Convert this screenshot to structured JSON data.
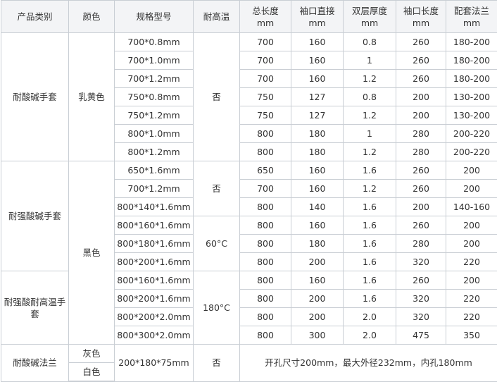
{
  "headers": [
    {
      "top": "产品类别"
    },
    {
      "top": "颜色"
    },
    {
      "top": "规格型号"
    },
    {
      "top": "耐高温"
    },
    {
      "top": "总长度",
      "unit": "mm"
    },
    {
      "top": "袖口直接",
      "unit": "mm"
    },
    {
      "top": "双层厚度",
      "unit": "mm"
    },
    {
      "top": "袖口长度",
      "unit": "mm"
    },
    {
      "top": "配套法兰",
      "unit": "mm"
    }
  ],
  "groups": {
    "g1": {
      "category": "耐酸碱手套",
      "color": "乳黄色",
      "heat": "否"
    },
    "g2": {
      "category": "耐强酸碱手套",
      "color": "黑色",
      "heat_a": "否",
      "heat_b": "60°C"
    },
    "g3": {
      "category": "耐强酸耐高温手套",
      "heat": "180°C"
    },
    "g4": {
      "category": "耐酸碱法兰",
      "color_a": "灰色",
      "color_b": "白色",
      "spec": "200*180*75mm",
      "heat": "否",
      "note": "开孔尺寸200mm，最大外径232mm，内孔180mm"
    }
  },
  "rows": [
    [
      "700*0.8mm",
      "700",
      "160",
      "0.8",
      "260",
      "180-200"
    ],
    [
      "700*1.0mm",
      "700",
      "160",
      "1",
      "260",
      "180-200"
    ],
    [
      "700*1.2mm",
      "700",
      "160",
      "1.2",
      "260",
      "180-200"
    ],
    [
      "750*0.8mm",
      "750",
      "127",
      "0.8",
      "200",
      "130-200"
    ],
    [
      "750*1.2mm",
      "750",
      "127",
      "1.2",
      "200",
      "130-200"
    ],
    [
      "800*1.0mm",
      "800",
      "180",
      "1",
      "280",
      "200-220"
    ],
    [
      "800*1.2mm",
      "800",
      "180",
      "1.2",
      "280",
      "200-220"
    ],
    [
      "650*1.6mm",
      "650",
      "160",
      "1.6",
      "260",
      "200"
    ],
    [
      "700*1.2mm",
      "700",
      "160",
      "1.2",
      "260",
      "200"
    ],
    [
      "800*140*1.6mm",
      "800",
      "140",
      "1.6",
      "200",
      "140-160"
    ],
    [
      "800*160*1.6mm",
      "800",
      "160",
      "1.6",
      "260",
      "200"
    ],
    [
      "800*180*1.6mm",
      "800",
      "180",
      "1.6",
      "280",
      "200"
    ],
    [
      "800*200*1.6mm",
      "800",
      "200",
      "1.6",
      "320",
      "220"
    ],
    [
      "800*160*1.6mm",
      "800",
      "160",
      "1.6",
      "260",
      "200"
    ],
    [
      "800*200*1.6mm",
      "800",
      "200",
      "1.6",
      "320",
      "220"
    ],
    [
      "800*200*2.0mm",
      "800",
      "200",
      "2.0",
      "320",
      "220"
    ],
    [
      "800*300*2.0mm",
      "800",
      "300",
      "2.0",
      "475",
      "350"
    ]
  ]
}
